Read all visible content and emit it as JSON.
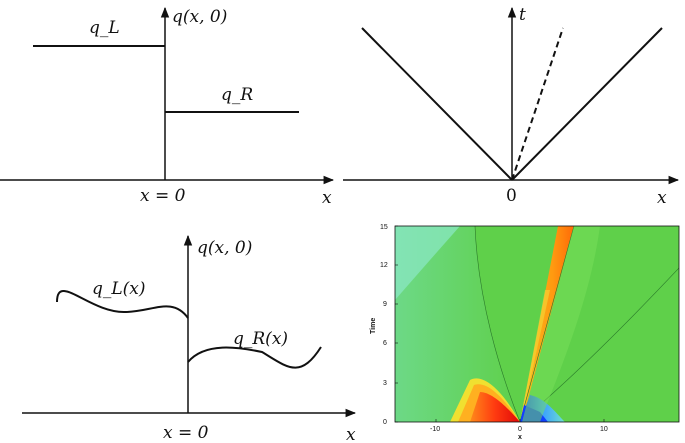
{
  "panels": {
    "top_left": {
      "y_axis_label": "q(x, 0)",
      "left_state_label": "q_L",
      "right_state_label": "q_R",
      "x_position_label": "x = 0",
      "x_axis_label": "x"
    },
    "top_right": {
      "t_axis_label": "t",
      "origin_label": "0",
      "x_axis_label": "x"
    },
    "bottom_left": {
      "y_axis_label": "q(x, 0)",
      "left_state_label": "q_L(x)",
      "right_state_label": "q_R(x)",
      "x_position_label": "x = 0",
      "x_axis_label": "x"
    },
    "bottom_right": {
      "y_axis_label": "Time",
      "x_axis_label": "x",
      "x_ticks": [
        "-10",
        "0",
        "10"
      ],
      "y_ticks": [
        "0",
        "3",
        "6",
        "9",
        "12",
        "15"
      ]
    }
  },
  "colors": {
    "line": "#111111",
    "background_field": "#5fd04a",
    "upper_left_region": "#6fdba0",
    "hot": "#e01010",
    "cold": "#1060ff"
  }
}
